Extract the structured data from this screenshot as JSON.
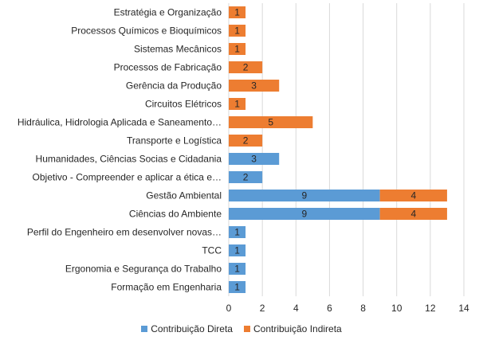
{
  "chart_data": {
    "type": "bar",
    "orientation": "horizontal",
    "stacked": true,
    "categories": [
      "Estratégia e Organização",
      "Processos Químicos e Bioquímicos",
      "Sistemas Mecânicos",
      "Processos de Fabricação",
      "Gerência da Produção",
      "Circuitos Elétricos",
      "Hidráulica, Hidrologia Aplicada e Saneamento…",
      "Transporte e Logística",
      "Humanidades, Ciências Socias e Cidadania",
      "Objetivo - Compreender e aplicar a ética e…",
      "Gestão Ambiental",
      "Ciências do Ambiente",
      "Perfil do Engenheiro em desenvolver novas…",
      "TCC",
      "Ergonomia e Segurança do Trabalho",
      "Formação em Engenharia"
    ],
    "series": [
      {
        "name": "Contribuição Direta",
        "color": "#5b9bd5",
        "values": [
          0,
          0,
          0,
          0,
          0,
          0,
          0,
          0,
          3,
          2,
          9,
          9,
          1,
          1,
          1,
          1
        ]
      },
      {
        "name": "Contribuição Indireta",
        "color": "#ed7d31",
        "values": [
          1,
          1,
          1,
          2,
          3,
          1,
          5,
          2,
          0,
          0,
          4,
          4,
          0,
          0,
          0,
          0
        ]
      }
    ],
    "xlim": [
      0,
      14
    ],
    "xticks": [
      "0",
      "2",
      "4",
      "6",
      "8",
      "10",
      "12",
      "14"
    ],
    "grid": "vertical",
    "legend": "bottom"
  }
}
